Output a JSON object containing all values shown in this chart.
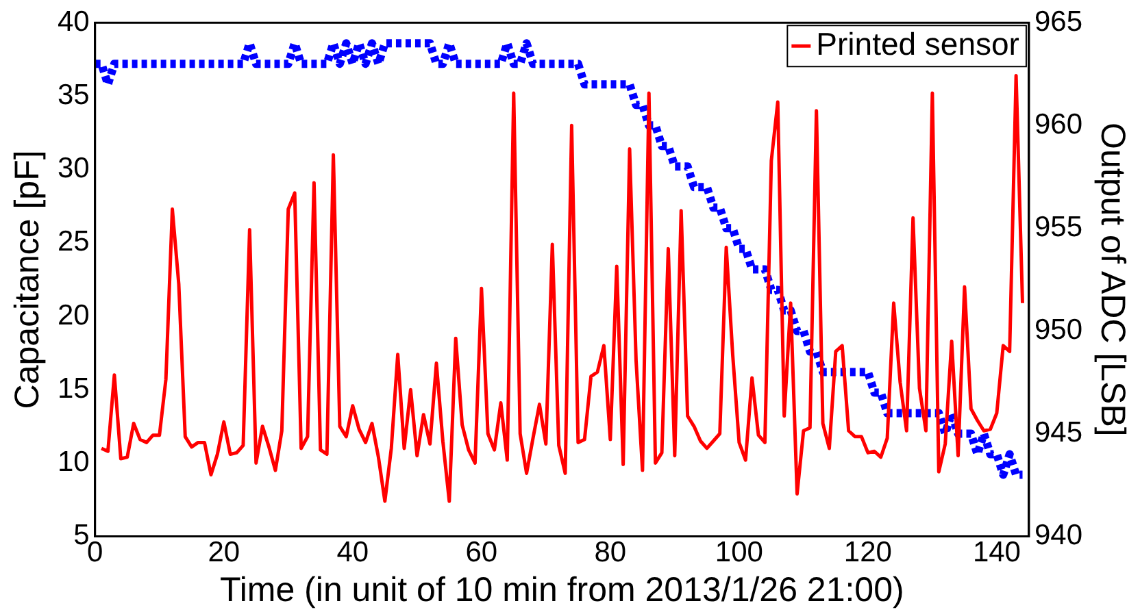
{
  "chart_data": {
    "type": "line",
    "xlabel": "Time (in unit of 10 min from 2013/1/26 21:00)",
    "ylabel": "Capacitance [pF]",
    "y2label": "Output of ADC [LSB]",
    "x": [
      0,
      1,
      2,
      3,
      4,
      5,
      6,
      7,
      8,
      9,
      10,
      11,
      12,
      13,
      14,
      15,
      16,
      17,
      18,
      19,
      20,
      21,
      22,
      23,
      24,
      25,
      26,
      27,
      28,
      29,
      30,
      31,
      32,
      33,
      34,
      35,
      36,
      37,
      38,
      39,
      40,
      41,
      42,
      43,
      44,
      45,
      46,
      47,
      48,
      49,
      50,
      51,
      52,
      53,
      54,
      55,
      56,
      57,
      58,
      59,
      60,
      61,
      62,
      63,
      64,
      65,
      66,
      67,
      68,
      69,
      70,
      71,
      72,
      73,
      74,
      75,
      76,
      77,
      78,
      79,
      80,
      81,
      82,
      83,
      84,
      85,
      86,
      87,
      88,
      89,
      90,
      91,
      92,
      93,
      94,
      95,
      96,
      97,
      98,
      99,
      100,
      101,
      102,
      103,
      104,
      105,
      106,
      107,
      108,
      109,
      110,
      111,
      112,
      113,
      114,
      115,
      116,
      117,
      118,
      119,
      120,
      121,
      122,
      123,
      124,
      125,
      126,
      127,
      128,
      129,
      130,
      131,
      132,
      133,
      134,
      135,
      136,
      137,
      138,
      139,
      140,
      141,
      142,
      143,
      144
    ],
    "series": [
      {
        "name": "Printed sensor",
        "color": "#ff0000",
        "values": [
          null,
          11,
          10.8,
          16,
          10.3,
          10.4,
          12.7,
          11.6,
          11.4,
          11.9,
          11.9,
          15.7,
          27.3,
          22.2,
          11.8,
          11.1,
          11.4,
          11.4,
          9.2,
          10.6,
          12.8,
          10.6,
          10.7,
          11.2,
          25.9,
          10.0,
          12.5,
          11.1,
          9.5,
          12.2,
          27.3,
          28.4,
          11.0,
          11.8,
          29.1,
          10.9,
          10.6,
          31.0,
          12.5,
          11.8,
          13.9,
          12.3,
          11.4,
          12.7,
          10.4,
          7.4,
          11.0,
          17.4,
          11.0,
          15.0,
          10.5,
          13.3,
          11.3,
          16.8,
          11.5,
          7.4,
          18.5,
          12.6,
          10.9,
          10.0,
          21.9,
          12.0,
          10.9,
          14.1,
          10.2,
          35.2,
          12.0,
          9.3,
          11.7,
          14,
          11.3,
          24.9,
          11.2,
          9.3,
          33,
          11.4,
          11.6,
          15.9,
          16.2,
          18.0,
          11.6,
          23.4,
          9.9,
          31.4,
          17,
          9.5,
          35.2,
          10,
          10.7,
          24.6,
          10.5,
          27.2,
          13.2,
          12.5,
          11.5,
          11,
          11.5,
          12,
          24.7,
          17.4,
          11.4,
          10.2,
          15.8,
          11.9,
          11.4,
          30.6,
          34.6,
          13.2,
          20.9,
          7.9,
          12.2,
          12.4,
          34,
          12.7,
          11,
          17.6,
          18,
          12.2,
          11.8,
          11.8,
          10.7,
          10.8,
          10.4,
          11.7,
          20.9,
          15.5,
          12.2,
          26.7,
          15.1,
          12.2,
          35.2,
          9.4,
          11.3,
          18.3,
          10.5,
          22,
          13.7,
          12.9,
          12.2,
          12.3,
          13.4,
          18,
          17.6,
          36.4,
          20.9
        ]
      },
      {
        "color": "#0000ff",
        "axis": "y2",
        "line_style": "dotted",
        "values": [
          963,
          963,
          962,
          963,
          963,
          963,
          963,
          963,
          963,
          963,
          963,
          963,
          963,
          963,
          963,
          963,
          963,
          963,
          963,
          963,
          963,
          963,
          963,
          963,
          964,
          963,
          963,
          963,
          963,
          963,
          963,
          964,
          963,
          963,
          963,
          963,
          963,
          964,
          963,
          964,
          963,
          964,
          963,
          964,
          963,
          964,
          964,
          964,
          964,
          964,
          964,
          964,
          964,
          963,
          963,
          964,
          963,
          963,
          963,
          963,
          963,
          963,
          963,
          963,
          964,
          963,
          963,
          964,
          963,
          963,
          963,
          963,
          963,
          963,
          963,
          963,
          962,
          962,
          962,
          962,
          962,
          962,
          962,
          962,
          961,
          961,
          960,
          960,
          959,
          959,
          958,
          958,
          958,
          957,
          957,
          957,
          956,
          956,
          955,
          955,
          954,
          954,
          953,
          953,
          953,
          952,
          952,
          951,
          951,
          950,
          950,
          949,
          949,
          948,
          948,
          948,
          948,
          948,
          948,
          948,
          948,
          947,
          947,
          946,
          946,
          946,
          946,
          946,
          946,
          946,
          946,
          946,
          945,
          946,
          945,
          945,
          945,
          944,
          945,
          944,
          944,
          943,
          944,
          943,
          943
        ]
      }
    ],
    "xlim": [
      0,
      145
    ],
    "xticks": [
      0,
      20,
      40,
      60,
      80,
      100,
      120,
      140
    ],
    "ylim": [
      5,
      40
    ],
    "yticks": [
      5,
      10,
      15,
      20,
      25,
      30,
      35,
      40
    ],
    "y2lim": [
      940,
      965
    ],
    "y2ticks": [
      940,
      945,
      950,
      955,
      960,
      965
    ],
    "grid": false,
    "legend": "top right",
    "line_style": "solid"
  }
}
